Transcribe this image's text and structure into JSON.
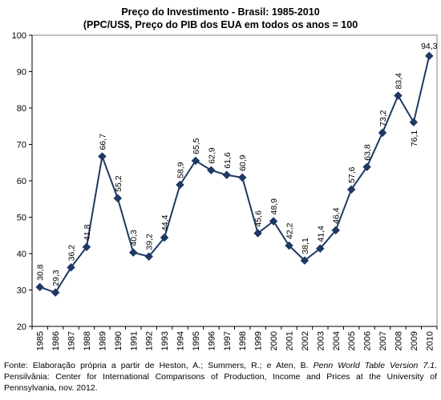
{
  "chart_data": {
    "type": "line",
    "title": "Preço do Investimento - Brasil: 1985-2010",
    "subtitle": "(PPC/US$, Preço do PIB dos EUA em todos os anos = 100",
    "xlabel": "",
    "ylabel": "",
    "ylim": [
      20,
      100
    ],
    "yticks": [
      20,
      30,
      40,
      50,
      60,
      70,
      80,
      90,
      100
    ],
    "grid": false,
    "legend": "none",
    "line_color": "#1f3864",
    "marker": "diamond",
    "categories": [
      "1985",
      "1986",
      "1987",
      "1988",
      "1989",
      "1990",
      "1991",
      "1992",
      "1993",
      "1994",
      "1995",
      "1996",
      "1997",
      "1998",
      "1999",
      "2000",
      "2001",
      "2002",
      "2003",
      "2004",
      "2005",
      "2006",
      "2007",
      "2008",
      "2009",
      "2010"
    ],
    "series": [
      {
        "values": [
          30.8,
          29.3,
          36.2,
          41.8,
          66.7,
          55.2,
          40.3,
          39.2,
          44.4,
          58.9,
          65.5,
          62.9,
          61.6,
          60.9,
          45.6,
          48.9,
          42.2,
          38.1,
          41.4,
          46.4,
          57.6,
          63.8,
          73.2,
          83.4,
          76.1,
          94.3
        ],
        "data_labels": [
          "30,8",
          "29,3",
          "36,2",
          "41,8",
          "66,7",
          "55,2",
          "40,3",
          "39,2",
          "44,4",
          "58,9",
          "65,5",
          "62,9",
          "61,6",
          "60,9",
          "45,6",
          "48,9",
          "42,2",
          "38,1",
          "41,4",
          "46,4",
          "57,6",
          "63,8",
          "73,2",
          "83,4",
          "76,1",
          "94,3"
        ]
      }
    ]
  },
  "footnote": {
    "part1": "Fonte: Elaboração própria a partir de Heston, A.; Summers, R.; e Aten, B. ",
    "italic": "Penn World Table Version 7.1",
    "part2": ". Pensilvânia: Center for International Comparisons of Production, Income and Prices at the University of Pennsylvania, nov. 2012."
  }
}
